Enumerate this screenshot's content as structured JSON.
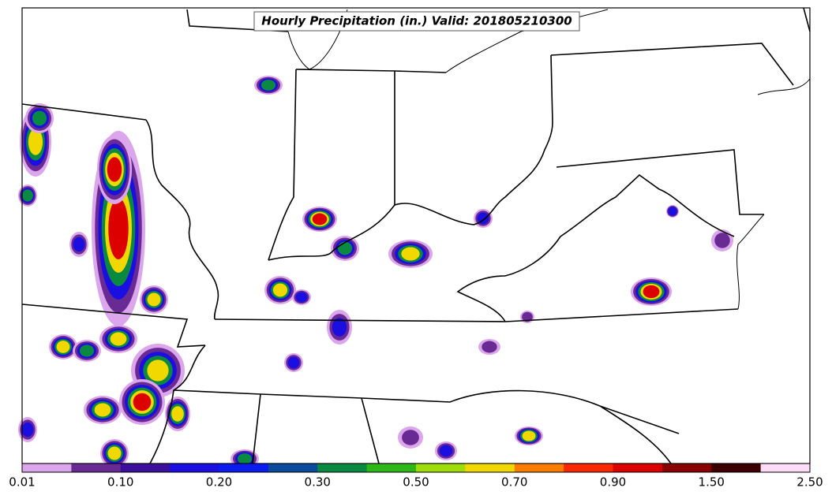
{
  "map": {
    "title": "Hourly Precipitation (in.) Valid: 201805210300",
    "colorbar": {
      "colors": [
        "#dca6ec",
        "#6a2a94",
        "#3c109c",
        "#1a0ee0",
        "#0a1cf0",
        "#0b4a9c",
        "#0a8a40",
        "#2eb818",
        "#9edc0a",
        "#f0d800",
        "#fa7c00",
        "#fa2800",
        "#dc0000",
        "#8a0000",
        "#3c0000",
        "#fcdcf8"
      ],
      "labels": [
        "0.01",
        "0.10",
        "0.20",
        "0.30",
        "0.50",
        "0.70",
        "0.90",
        "1.50",
        "2.50"
      ]
    }
  }
}
